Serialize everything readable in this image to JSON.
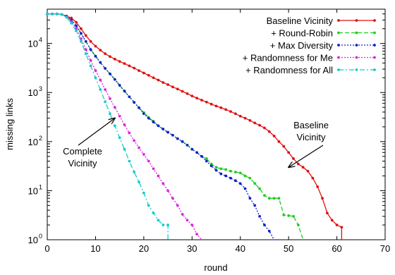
{
  "chart_data": {
    "type": "line",
    "xlabel": "round",
    "ylabel": "missing links",
    "xlim": [
      0,
      70
    ],
    "ylim": [
      1,
      50000
    ],
    "yscale": "log",
    "grid": false,
    "legend": "top-right",
    "xticks": [
      0,
      10,
      20,
      30,
      40,
      50,
      60,
      70
    ],
    "xtick_labels": [
      "0",
      "10",
      "20",
      "30",
      "40",
      "50",
      "60",
      "70"
    ],
    "yticks": [
      1,
      10,
      100,
      1000,
      10000
    ],
    "ytick_labels": [
      "10",
      "10",
      "10",
      "10",
      "10"
    ],
    "ytick_exponents": [
      "0",
      "1",
      "2",
      "3",
      "4"
    ],
    "series": [
      {
        "name": "Baseline Vicinity",
        "color": "#e01010",
        "dash": "solid",
        "x": [
          0,
          1,
          2,
          3,
          4,
          5,
          6,
          7,
          8,
          9,
          10,
          11,
          12,
          13,
          14,
          15,
          16,
          17,
          18,
          19,
          20,
          21,
          22,
          23,
          24,
          25,
          26,
          27,
          28,
          29,
          30,
          31,
          32,
          33,
          34,
          35,
          36,
          37,
          38,
          39,
          40,
          41,
          42,
          43,
          44,
          45,
          46,
          47,
          48,
          49,
          50,
          51,
          52,
          53,
          54,
          55,
          56,
          57,
          58,
          59,
          60,
          61,
          61
        ],
        "y": [
          40000,
          40000,
          40000,
          39000,
          36000,
          33000,
          27000,
          20000,
          14500,
          11000,
          8800,
          7300,
          6200,
          5400,
          4800,
          4300,
          3900,
          3500,
          3150,
          2800,
          2500,
          2250,
          2000,
          1800,
          1600,
          1450,
          1300,
          1180,
          1060,
          950,
          850,
          770,
          700,
          640,
          580,
          530,
          490,
          450,
          410,
          370,
          330,
          300,
          270,
          240,
          215,
          190,
          160,
          130,
          100,
          80,
          60,
          45,
          35,
          30,
          25,
          18,
          12,
          7,
          3.5,
          2.5,
          2.0,
          1.8,
          1
        ]
      },
      {
        "name": "+ Round-Robin",
        "color": "#22cc22",
        "dash": "dashed",
        "x": [
          0,
          1,
          2,
          3,
          4,
          5,
          6,
          7,
          8,
          9,
          10,
          11,
          12,
          13,
          14,
          15,
          16,
          17,
          18,
          19,
          20,
          21,
          22,
          23,
          24,
          25,
          26,
          27,
          28,
          29,
          30,
          31,
          32,
          33,
          34,
          35,
          36,
          37,
          38,
          39,
          40,
          41,
          42,
          43,
          44,
          45,
          46,
          47,
          48,
          49,
          50,
          51,
          52,
          53
        ],
        "y": [
          40000,
          40000,
          40000,
          39000,
          36000,
          30000,
          23000,
          16000,
          11000,
          7500,
          5500,
          4100,
          3100,
          2400,
          1850,
          1400,
          1070,
          820,
          630,
          490,
          390,
          310,
          260,
          210,
          180,
          155,
          135,
          115,
          100,
          85,
          70,
          60,
          50,
          45,
          35,
          30,
          28,
          27,
          25,
          24,
          23,
          20,
          18,
          14,
          11,
          8,
          7,
          7,
          7,
          3.2,
          3.1,
          3.0,
          2.0,
          1
        ]
      },
      {
        "name": "+ Max Diversity",
        "color": "#1020cc",
        "dash": "dotted",
        "x": [
          0,
          1,
          2,
          3,
          4,
          5,
          6,
          7,
          8,
          9,
          10,
          11,
          12,
          13,
          14,
          15,
          16,
          17,
          18,
          19,
          20,
          21,
          22,
          23,
          24,
          25,
          26,
          27,
          28,
          29,
          30,
          31,
          32,
          33,
          34,
          35,
          36,
          37,
          38,
          39,
          40,
          41,
          42,
          43,
          44,
          45,
          46,
          47,
          48
        ],
        "y": [
          40000,
          40000,
          40000,
          39000,
          36000,
          30000,
          23000,
          16000,
          11000,
          7500,
          5500,
          4100,
          3100,
          2400,
          1850,
          1400,
          1070,
          820,
          630,
          490,
          370,
          300,
          250,
          210,
          180,
          155,
          135,
          115,
          100,
          85,
          70,
          60,
          50,
          40,
          32,
          26,
          22,
          20,
          18,
          16,
          14,
          11,
          7,
          5,
          3,
          2,
          1.5,
          1,
          1
        ]
      },
      {
        "name": "+ Randomness for Me",
        "color": "#dd22dd",
        "dash": "dotted",
        "x": [
          0,
          1,
          2,
          3,
          4,
          5,
          6,
          7,
          8,
          9,
          10,
          11,
          12,
          13,
          14,
          15,
          16,
          17,
          18,
          19,
          20,
          21,
          22,
          23,
          24,
          25,
          26,
          27,
          28,
          29,
          30,
          31,
          32
        ],
        "y": [
          40000,
          40000,
          40000,
          39000,
          35000,
          28000,
          20000,
          12500,
          7500,
          4500,
          2800,
          1800,
          1150,
          750,
          500,
          330,
          220,
          150,
          105,
          75,
          55,
          40,
          28,
          20,
          14,
          10,
          7,
          5,
          3.3,
          2.5,
          2,
          1.3,
          1
        ]
      },
      {
        "name": "+ Randomness for All",
        "color": "#11cccc",
        "dash": "dashdot",
        "x": [
          0,
          1,
          2,
          3,
          4,
          5,
          6,
          7,
          8,
          9,
          10,
          11,
          12,
          13,
          14,
          15,
          16,
          17,
          18,
          19,
          20,
          21,
          22,
          23,
          24,
          25,
          25
        ],
        "y": [
          40000,
          40000,
          40000,
          39000,
          34000,
          26000,
          18000,
          11000,
          6200,
          3500,
          2000,
          1150,
          650,
          370,
          210,
          120,
          70,
          40,
          24,
          15,
          9,
          5,
          3.5,
          2.5,
          2,
          2,
          1
        ]
      }
    ],
    "annotations": [
      {
        "text_lines": [
          "Complete",
          "Vicinity"
        ],
        "arrow_to": [
          14,
          300
        ]
      },
      {
        "text_lines": [
          "Baseline",
          "Vicinity"
        ],
        "arrow_to": [
          50,
          30
        ]
      }
    ]
  }
}
